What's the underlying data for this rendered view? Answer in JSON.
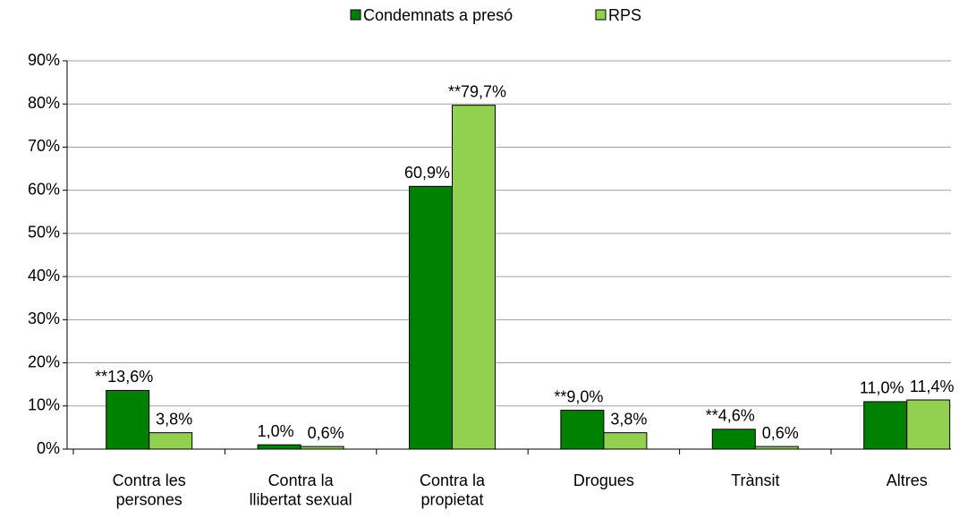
{
  "chart_data": {
    "type": "bar",
    "categories": [
      "Contra les\npersones",
      "Contra la\nllibertat sexual",
      "Contra la\npropietat",
      "Drogues",
      "Trànsit",
      "Altres"
    ],
    "series": [
      {
        "name": "Condemnats a presó",
        "color": "#008000",
        "values": [
          13.6,
          1.0,
          60.9,
          9.0,
          4.6,
          11.0
        ],
        "value_labels": [
          "**13,6%",
          "1,0%",
          "60,9%",
          "**9,0%",
          "**4,6%",
          "11,0%"
        ]
      },
      {
        "name": "RPS",
        "color": "#92d050",
        "values": [
          3.8,
          0.6,
          79.7,
          3.8,
          0.6,
          11.4
        ],
        "value_labels": [
          "3,8%",
          "0,6%",
          "**79,7%",
          "3,8%",
          "0,6%",
          "11,4%"
        ]
      }
    ],
    "ylim": [
      0,
      90
    ],
    "yticks": [
      {
        "value": 0,
        "label": "0%"
      },
      {
        "value": 10,
        "label": "10%"
      },
      {
        "value": 20,
        "label": "20%"
      },
      {
        "value": 30,
        "label": "30%"
      },
      {
        "value": 40,
        "label": "40%"
      },
      {
        "value": 50,
        "label": "50%"
      },
      {
        "value": 60,
        "label": "60%"
      },
      {
        "value": 70,
        "label": "70%"
      },
      {
        "value": 80,
        "label": "80%"
      },
      {
        "value": 90,
        "label": "90%"
      }
    ],
    "grid": true,
    "legend": "top"
  }
}
